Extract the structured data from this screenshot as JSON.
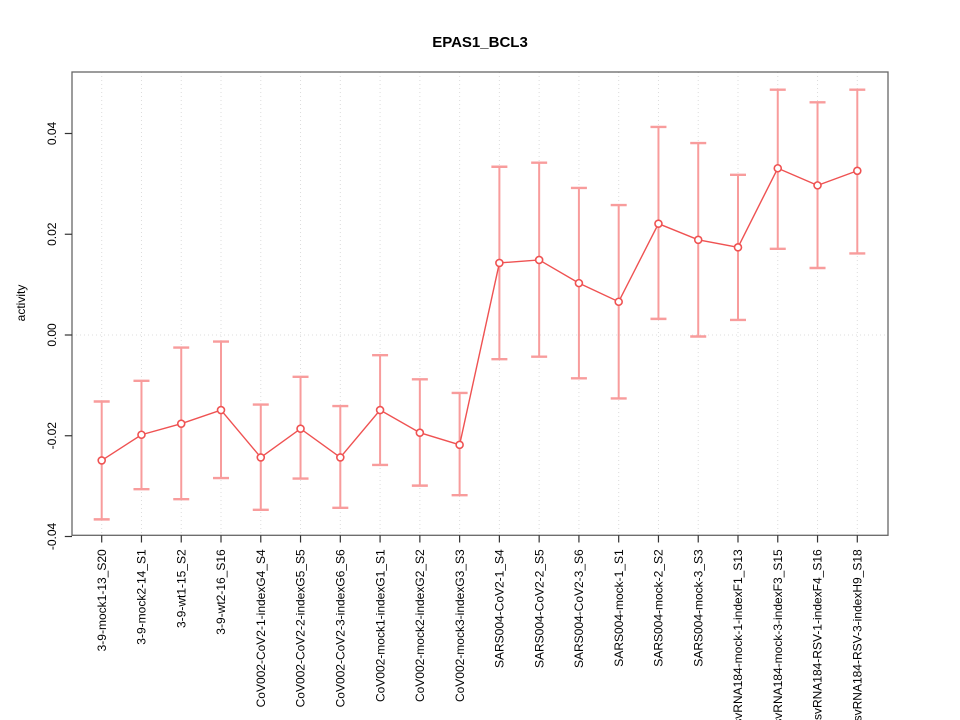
{
  "window": {
    "background": "#ffffff"
  },
  "chart_data": {
    "type": "line",
    "title": "EPAS1_BCL3",
    "xlabel": "",
    "ylabel": "activity",
    "ylim": [
      -0.04,
      0.052
    ],
    "yticks": [
      -0.04,
      -0.02,
      0.0,
      0.02,
      0.04
    ],
    "grid": {
      "vertical": "dotted line at every category",
      "horizontal": "dotted line at y=0 only"
    },
    "legend": "none",
    "point_style": "open-circle",
    "colors": {
      "series": "#ef5252",
      "errorbar": "#f89c9c",
      "gridline": "#dcdcdc",
      "frame": "#666666",
      "tick": "#333333",
      "text": "#000000"
    },
    "categories": [
      "3-9-mock1-13_S20",
      "3-9-mock2-14_S1",
      "3-9-wt1-15_S2",
      "3-9-wt2-16_S16",
      "CoV002-CoV2-1-indexG4_S4",
      "CoV002-CoV2-2-indexG5_S5",
      "CoV002-CoV2-3-indexG6_S6",
      "CoV002-mock1-indexG1_S1",
      "CoV002-mock2-indexG2_S2",
      "CoV002-mock3-indexG3_S3",
      "SARS004-CoV2-1_S4",
      "SARS004-CoV2-2_S5",
      "SARS004-CoV2-3_S6",
      "SARS004-mock-1_S1",
      "SARS004-mock-2_S2",
      "SARS004-mock-3_S3",
      "svRNA184-mock-1-indexF1_S13",
      "svRNA184-mock-3-indexF3_S15",
      "svRNA184-RSV-1-indexF4_S16",
      "svRNA184-RSV-3-indexH9_S18"
    ],
    "values": [
      -0.0249,
      -0.0198,
      -0.0176,
      -0.0149,
      -0.0243,
      -0.0186,
      -0.0243,
      -0.0149,
      -0.0194,
      -0.0218,
      0.0143,
      0.0149,
      0.0103,
      0.0066,
      0.0221,
      0.0189,
      0.0174,
      0.0331,
      0.0297,
      0.0326
    ],
    "error_high": [
      -0.0132,
      -0.0091,
      -0.0025,
      -0.0013,
      -0.0138,
      -0.0083,
      -0.0141,
      -0.004,
      -0.0088,
      -0.0115,
      0.0334,
      0.0342,
      0.0292,
      0.0258,
      0.0413,
      0.0381,
      0.0318,
      0.0487,
      0.0462,
      0.0487
    ],
    "error_low": [
      -0.0366,
      -0.0306,
      -0.0326,
      -0.0284,
      -0.0347,
      -0.0285,
      -0.0343,
      -0.0258,
      -0.0299,
      -0.0318,
      -0.0048,
      -0.0043,
      -0.0086,
      -0.0126,
      0.0032,
      -0.0003,
      0.003,
      0.0171,
      0.0133,
      0.0162
    ]
  }
}
